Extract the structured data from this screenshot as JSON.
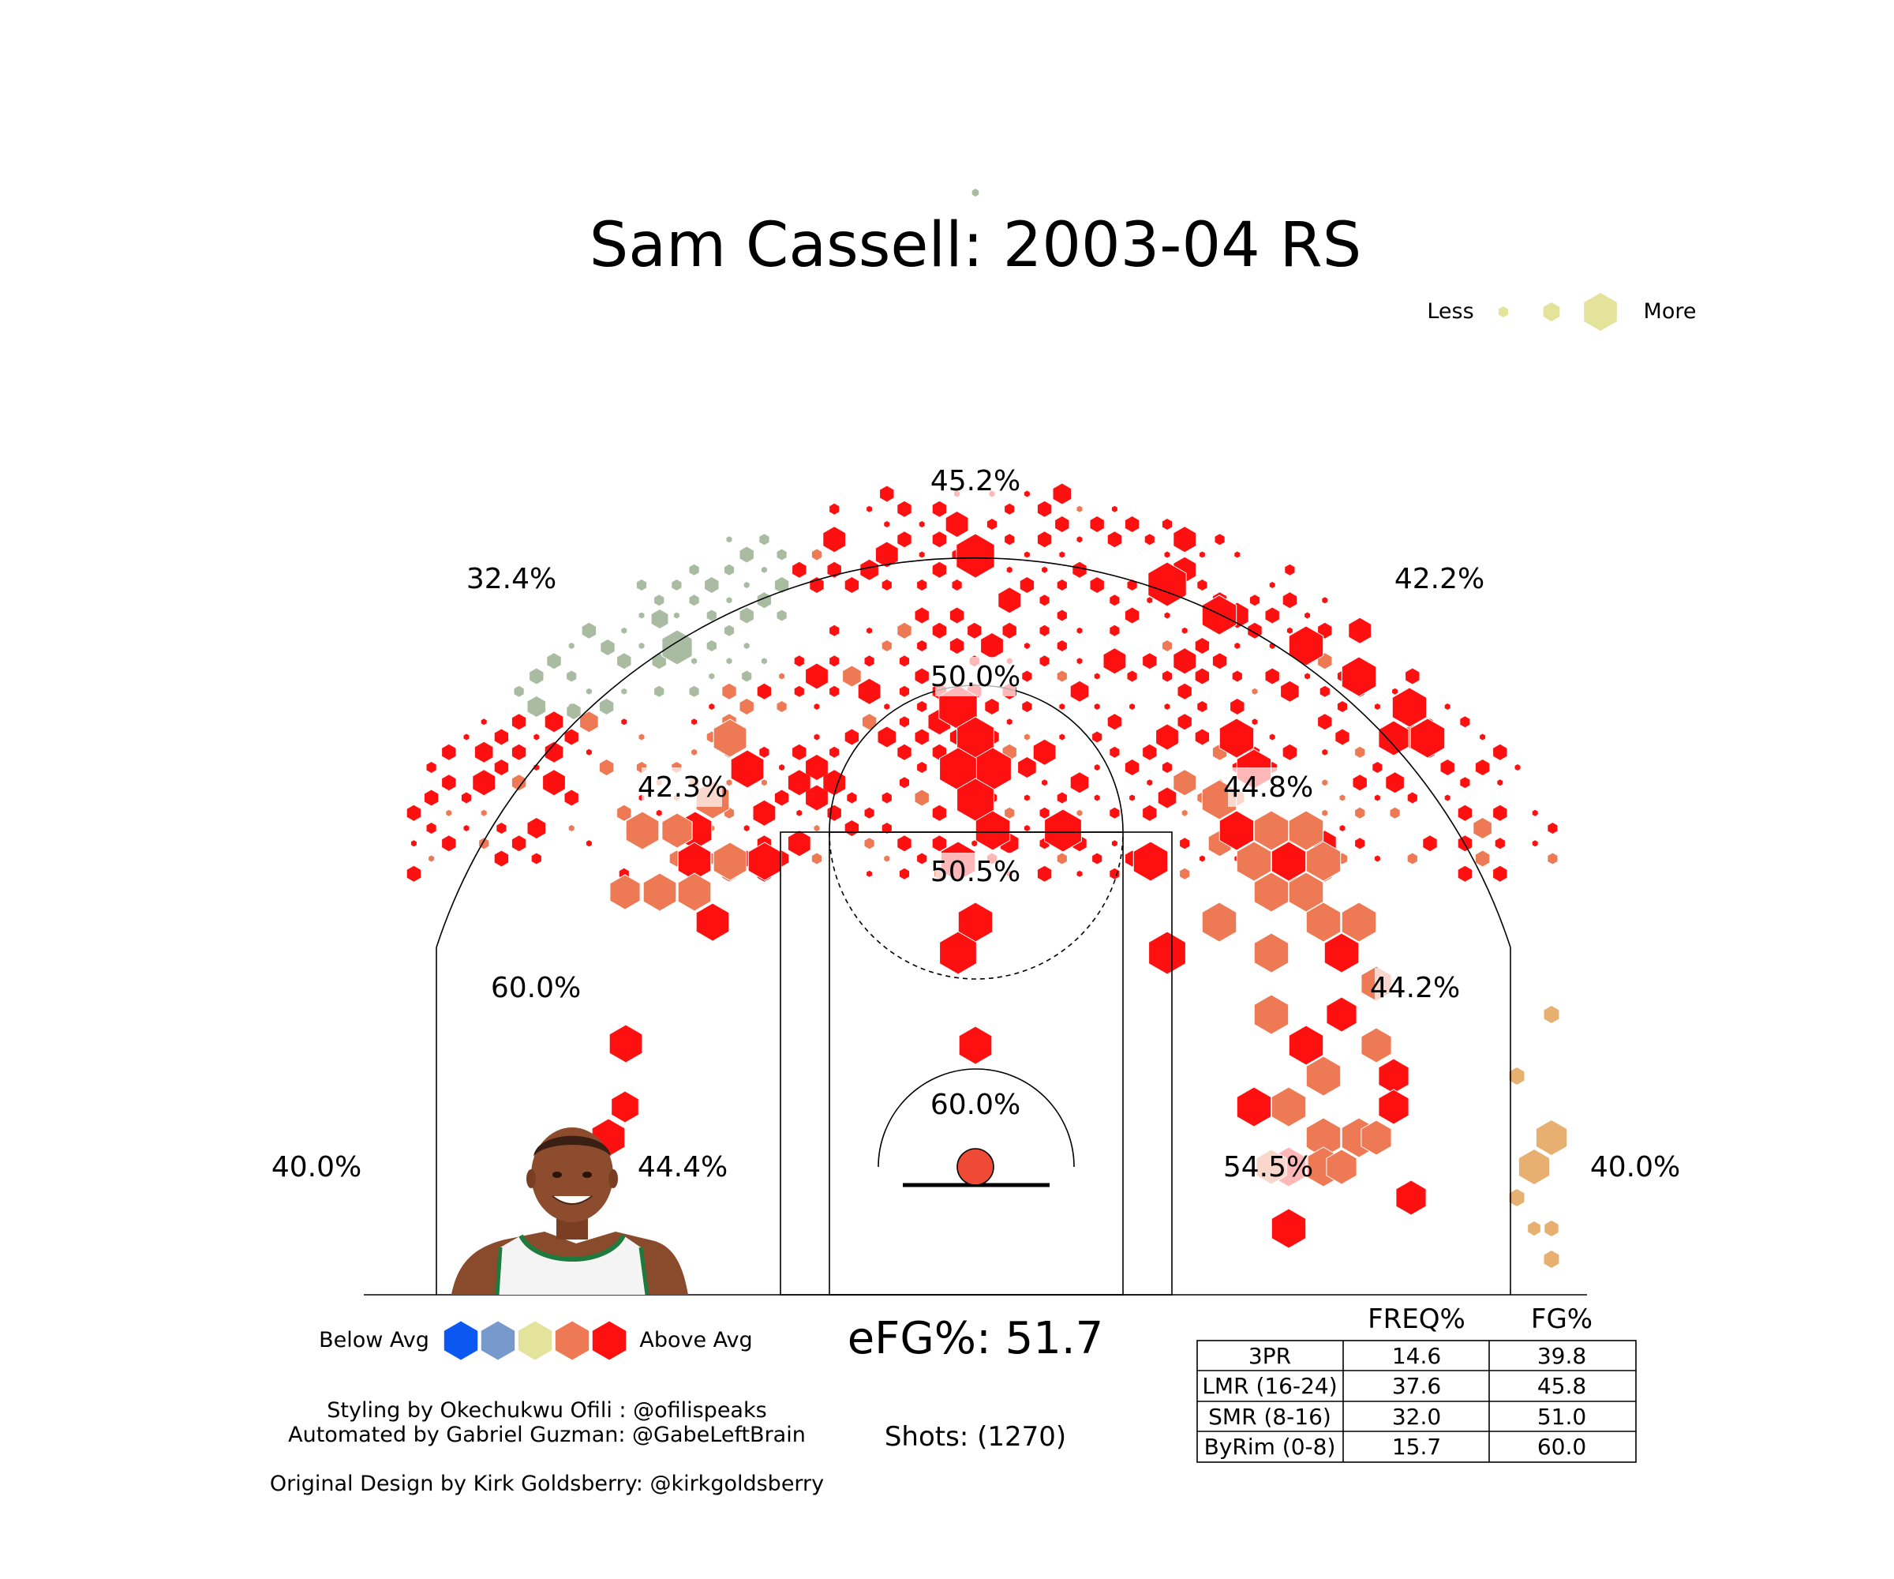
{
  "chart_data": {
    "type": "hexbin shot chart",
    "title": "Sam Cassell: 2003-04 RS",
    "size_legend": {
      "less_label": "Less",
      "more_label": "More",
      "color": "#e3e39b"
    },
    "color_legend": {
      "below_label": "Below Avg",
      "above_label": "Above Avg",
      "colors": [
        "#0a57f2",
        "#7899cc",
        "#e3e39b",
        "#ee7a55",
        "#ff1010"
      ]
    },
    "zone_labels": [
      {
        "zone": "left-corner-3",
        "fg_pct": "40.0%"
      },
      {
        "zone": "left-wing-3",
        "fg_pct": "32.4%"
      },
      {
        "zone": "top-3",
        "fg_pct": "45.2%"
      },
      {
        "zone": "right-wing-3",
        "fg_pct": "42.2%"
      },
      {
        "zone": "right-corner-3",
        "fg_pct": "40.0%"
      },
      {
        "zone": "left-baseline-mid",
        "fg_pct": "44.4%"
      },
      {
        "zone": "left-mid",
        "fg_pct": "60.0%"
      },
      {
        "zone": "left-elbow-mid",
        "fg_pct": "42.3%"
      },
      {
        "zone": "top-mid",
        "fg_pct": "50.0%"
      },
      {
        "zone": "right-elbow-mid",
        "fg_pct": "44.8%"
      },
      {
        "zone": "right-mid",
        "fg_pct": "44.2%"
      },
      {
        "zone": "right-baseline-mid",
        "fg_pct": "54.5%"
      },
      {
        "zone": "paint",
        "fg_pct": "50.5%"
      },
      {
        "zone": "restricted-area",
        "fg_pct": "60.0%"
      }
    ],
    "efg_label": "eFG%: 51.7",
    "shots_label": "Shots: (1270)",
    "table": {
      "columns": [
        "",
        "FREQ%",
        "FG%"
      ],
      "rows": [
        {
          "zone": "3PR",
          "freq": "14.6",
          "fg": "39.8"
        },
        {
          "zone": "LMR (16-24)",
          "freq": "37.6",
          "fg": "45.8"
        },
        {
          "zone": "SMR (8-16)",
          "freq": "32.0",
          "fg": "51.0"
        },
        {
          "zone": "ByRim (0-8)",
          "freq": "15.7",
          "fg": "60.0"
        }
      ]
    }
  },
  "credits": {
    "line1": "Styling by Okechukwu Ofili : @ofilispeaks",
    "line2": "Automated by Gabriel Guzman: @GabeLeftBrain",
    "line3": "Original Design by Kirk Goldsberry: @kirkgoldsberry"
  },
  "colors": {
    "hex_above": "#ff1010",
    "hex_slightly_above": "#ee7a55",
    "hex_avg": "#e8b070",
    "hex_below": "#a9bba1",
    "line": "#000000"
  },
  "icons": {
    "player_photo": "player-headshot-icon"
  }
}
